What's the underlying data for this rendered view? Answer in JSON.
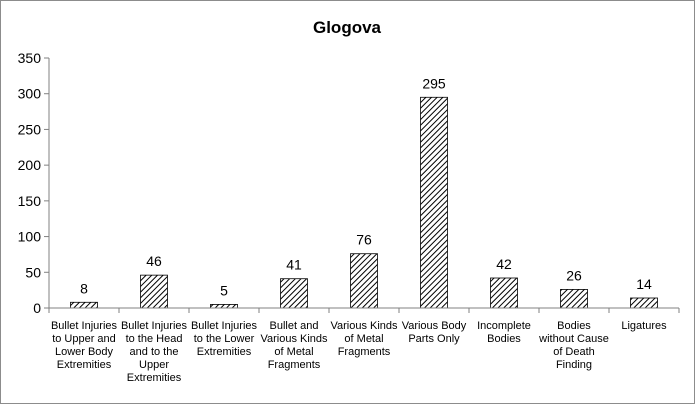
{
  "chart_data": {
    "type": "bar",
    "title": "Glogova",
    "xlabel": "",
    "ylabel": "",
    "ylim": [
      0,
      350
    ],
    "yticks": [
      0,
      50,
      100,
      150,
      200,
      250,
      300,
      350
    ],
    "categories": [
      "Bullet Injuries to Upper and Lower Body Extremities",
      "Bullet Injuries to the Head and to the Upper Extremities",
      "Bullet Injuries to the Lower Extremities",
      "Bullet and Various Kinds of Metal Fragments",
      "Various Kinds of Metal Fragments",
      "Various Body Parts Only",
      "Incomplete Bodies",
      "Bodies without Cause of Death Finding",
      "Ligatures"
    ],
    "category_label_lines": [
      [
        "Bullet Injuries",
        "to Upper and",
        "Lower Body",
        "Extremities"
      ],
      [
        "Bullet Injuries",
        "to the Head",
        "and to the",
        "Upper",
        "Extremities"
      ],
      [
        "Bullet Injuries",
        "to the Lower",
        "Extremities"
      ],
      [
        "Bullet and",
        "Various Kinds",
        "of Metal",
        "Fragments"
      ],
      [
        "Various Kinds",
        "of Metal",
        "Fragments"
      ],
      [
        "Various Body",
        "Parts Only"
      ],
      [
        "Incomplete",
        "Bodies"
      ],
      [
        "Bodies",
        "without Cause",
        "of Death",
        "Finding"
      ],
      [
        "Ligatures"
      ]
    ],
    "values": [
      8,
      46,
      5,
      41,
      76,
      295,
      42,
      26,
      14
    ],
    "data_labels": true,
    "grid": false,
    "legend": "none",
    "bar_fill": "diagonal-hatch",
    "colors": {
      "bar_stroke": "#000000",
      "hatch": "#000000",
      "axis": "#808080",
      "text": "#000000",
      "background": "#ffffff"
    }
  }
}
